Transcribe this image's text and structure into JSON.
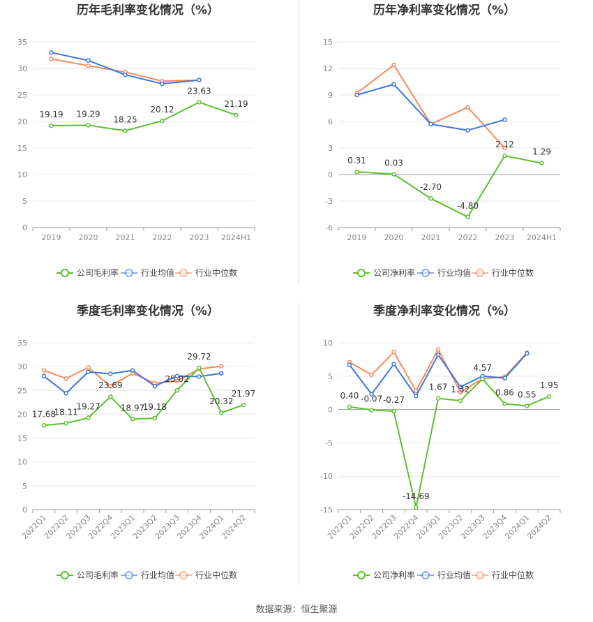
{
  "colors": {
    "company": "#5cc02c",
    "avg": "#3f76dc",
    "median": "#f5895c",
    "grid": "#e6e6e6",
    "axis": "#999999"
  },
  "legend": {
    "company_gross": "公司毛利率",
    "company_net": "公司净利率",
    "avg": "行业均值",
    "median": "行业中位数"
  },
  "source": "数据来源：恒生聚源",
  "chart_data": [
    {
      "type": "line",
      "title": "历年毛利率变化情况（%）",
      "categories": [
        "2019",
        "2020",
        "2021",
        "2022",
        "2023",
        "2024H1"
      ],
      "yticks": [
        0,
        5,
        10,
        15,
        20,
        25,
        30,
        35
      ],
      "ylim": [
        0,
        35
      ],
      "series": [
        {
          "name": "公司毛利率",
          "role": "company",
          "values": [
            19.19,
            19.29,
            18.25,
            20.12,
            23.63,
            21.19
          ],
          "labels": [
            "19.19",
            "19.29",
            "18.25",
            "20.12",
            "23.63",
            "21.19"
          ]
        },
        {
          "name": "行业均值",
          "role": "avg",
          "values": [
            33.0,
            31.5,
            28.8,
            27.1,
            27.8,
            null
          ]
        },
        {
          "name": "行业中位数",
          "role": "median",
          "values": [
            31.8,
            30.5,
            29.3,
            27.6,
            27.8,
            null
          ]
        }
      ],
      "legend_position": "bottom"
    },
    {
      "type": "line",
      "title": "历年净利率变化情况（%）",
      "categories": [
        "2019",
        "2020",
        "2021",
        "2022",
        "2023",
        "2024H1"
      ],
      "yticks": [
        -6,
        -3,
        0,
        3,
        6,
        9,
        12,
        15
      ],
      "ylim": [
        -6,
        15
      ],
      "series": [
        {
          "name": "公司净利率",
          "role": "company",
          "values": [
            0.31,
            0.03,
            -2.7,
            -4.8,
            2.12,
            1.29
          ],
          "labels": [
            "0.31",
            "0.03",
            "-2.70",
            "-4.80",
            "2.12",
            "1.29"
          ]
        },
        {
          "name": "行业均值",
          "role": "avg",
          "values": [
            9.0,
            10.2,
            5.7,
            5.0,
            6.2,
            null
          ]
        },
        {
          "name": "行业中位数",
          "role": "median",
          "values": [
            9.2,
            12.4,
            5.7,
            7.6,
            3.0,
            null
          ]
        }
      ],
      "legend_position": "bottom"
    },
    {
      "type": "line",
      "title": "季度毛利率变化情况（%）",
      "categories": [
        "2022Q1",
        "2022Q2",
        "2022Q3",
        "2022Q4",
        "2023Q1",
        "2023Q2",
        "2023Q3",
        "2023Q4",
        "2024Q1",
        "2024Q2"
      ],
      "yticks": [
        0,
        5,
        10,
        15,
        20,
        25,
        30,
        35
      ],
      "ylim": [
        0,
        35
      ],
      "series": [
        {
          "name": "公司毛利率",
          "role": "company",
          "values": [
            17.68,
            18.11,
            19.27,
            23.69,
            18.97,
            19.18,
            25.02,
            29.72,
            20.32,
            21.97
          ],
          "labels": [
            "17.68",
            "18.11",
            "19.27",
            "23.69",
            "18.97",
            "19.18",
            "25.02",
            "29.72",
            "20.32",
            "21.97"
          ]
        },
        {
          "name": "行业均值",
          "role": "avg",
          "values": [
            28.0,
            24.4,
            28.9,
            28.5,
            29.2,
            25.9,
            28.0,
            27.9,
            28.6,
            null
          ]
        },
        {
          "name": "行业中位数",
          "role": "median",
          "values": [
            29.2,
            27.5,
            29.8,
            25.9,
            28.6,
            26.5,
            27.0,
            29.5,
            30.1,
            null
          ]
        }
      ],
      "legend_position": "bottom"
    },
    {
      "type": "line",
      "title": "季度净利率变化情况（%）",
      "categories": [
        "2022Q1",
        "2022Q2",
        "2022Q3",
        "2022Q4",
        "2023Q1",
        "2023Q2",
        "2023Q3",
        "2023Q4",
        "2024Q1",
        "2024Q2"
      ],
      "yticks": [
        -15,
        -10,
        -5,
        0,
        5,
        10
      ],
      "ylim": [
        -15,
        10
      ],
      "series": [
        {
          "name": "公司净利率",
          "role": "company",
          "values": [
            0.4,
            -0.07,
            -0.27,
            -14.69,
            1.67,
            1.32,
            4.57,
            0.86,
            0.55,
            1.95
          ],
          "labels": [
            "0.40",
            "-0.07",
            "-0.27",
            "-14.69",
            "1.67",
            "1.32",
            "4.57",
            "0.86",
            "0.55",
            "1.95"
          ]
        },
        {
          "name": "行业均值",
          "role": "avg",
          "values": [
            6.7,
            2.3,
            6.8,
            2.0,
            8.2,
            3.4,
            5.0,
            4.7,
            8.4,
            null
          ]
        },
        {
          "name": "行业中位数",
          "role": "median",
          "values": [
            7.1,
            5.2,
            8.6,
            2.8,
            9.0,
            2.6,
            4.6,
            4.9,
            8.5,
            null
          ]
        }
      ],
      "legend_position": "bottom"
    }
  ]
}
